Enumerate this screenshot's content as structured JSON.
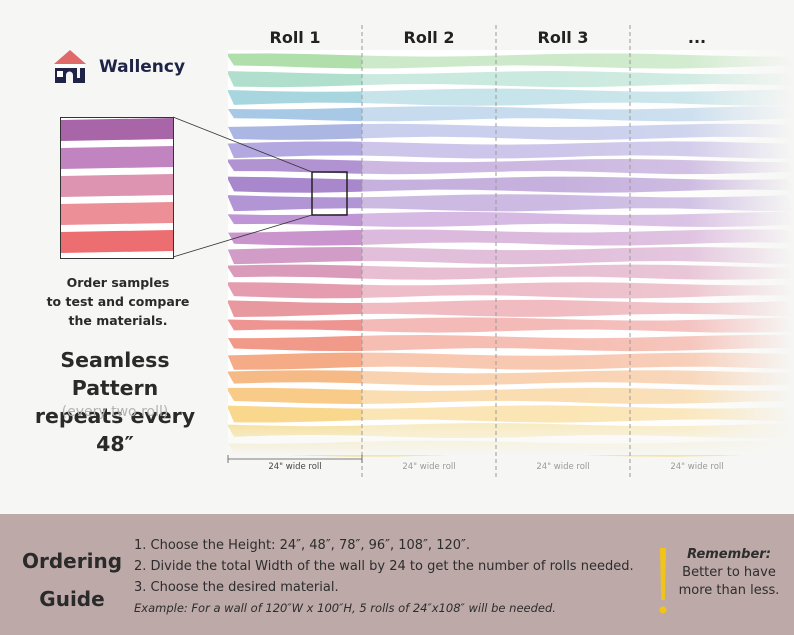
{
  "brand": {
    "name": "Wallency",
    "icon": "house-logo-icon"
  },
  "rolls": [
    {
      "label": "Roll 1",
      "width_label": "24\" wide roll"
    },
    {
      "label": "Roll 2",
      "width_label": "24\" wide roll"
    },
    {
      "label": "Roll 3",
      "width_label": "24\" wide roll"
    },
    {
      "label": "...",
      "width_label": "24\" wide roll"
    }
  ],
  "sample": {
    "caption_lines": [
      "Order samples",
      "to test and compare",
      "the materials."
    ]
  },
  "pattern": {
    "title_lines": [
      "Seamless Pattern",
      "repeats every 48″"
    ],
    "subtitle": "(every two roll)"
  },
  "guide": {
    "title_lines": [
      "Ordering",
      "Guide"
    ],
    "steps": [
      "1. Choose the Height: 24″,  48″,  78″,  96″,  108″,  120″.",
      "2. Divide the total Width of the wall by 24 to get the number of rolls needed.",
      "3. Choose the desired material."
    ],
    "example": "Example: For a wall of 120″W x 100″H, 5 rolls of 24″x108″ will be needed.",
    "remember_title": "Remember:",
    "remember_lines": [
      "Better to have",
      "more than less."
    ]
  },
  "colors": {
    "guide_bg": "#bca9a8",
    "accent_yellow": "#f2c418",
    "logo_red": "#e06a6a",
    "logo_navy": "#1f2447",
    "stripes": [
      "#a8dba3",
      "#a7dcc9",
      "#9fd1db",
      "#9ec3e2",
      "#a3aee0",
      "#ab9fdc",
      "#a987cd",
      "#9e7ac7",
      "#a98ad0",
      "#b98ad0",
      "#c48ac7",
      "#cc91c0",
      "#d690b3",
      "#e191a5",
      "#e68e96",
      "#ec8a85",
      "#f08f7c",
      "#f3a279",
      "#f5b27a",
      "#f7c57b",
      "#f8d37f",
      "#f5db8d",
      "#f5e29b"
    ]
  }
}
